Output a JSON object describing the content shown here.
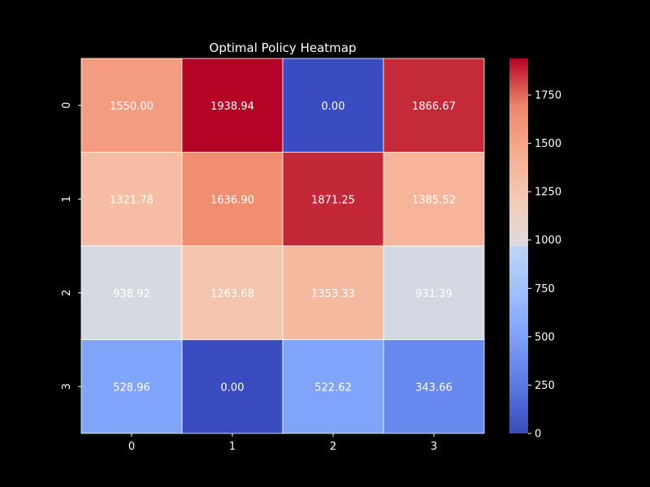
{
  "chart_data": {
    "type": "heatmap",
    "title": "Optimal Policy Heatmap",
    "xlabel": "",
    "ylabel": "",
    "x_categories": [
      "0",
      "1",
      "2",
      "3"
    ],
    "y_categories": [
      "0",
      "1",
      "2",
      "3"
    ],
    "values": [
      [
        1550.0,
        1938.94,
        0.0,
        1866.67
      ],
      [
        1321.78,
        1636.9,
        1871.25,
        1385.52
      ],
      [
        938.92,
        1263.68,
        1353.33,
        931.39
      ],
      [
        528.96,
        0.0,
        522.62,
        343.66
      ]
    ],
    "value_format_decimals": 2,
    "colormap": "coolwarm",
    "vmin": 0,
    "vmax": 1938.94,
    "colorbar_ticks": [
      0,
      250,
      500,
      750,
      1000,
      1250,
      1500,
      1750
    ],
    "cell_border_color": "#ffffff",
    "annotation_color": "#ffffff",
    "background_color": "#000000",
    "text_color": "#ffffff"
  }
}
